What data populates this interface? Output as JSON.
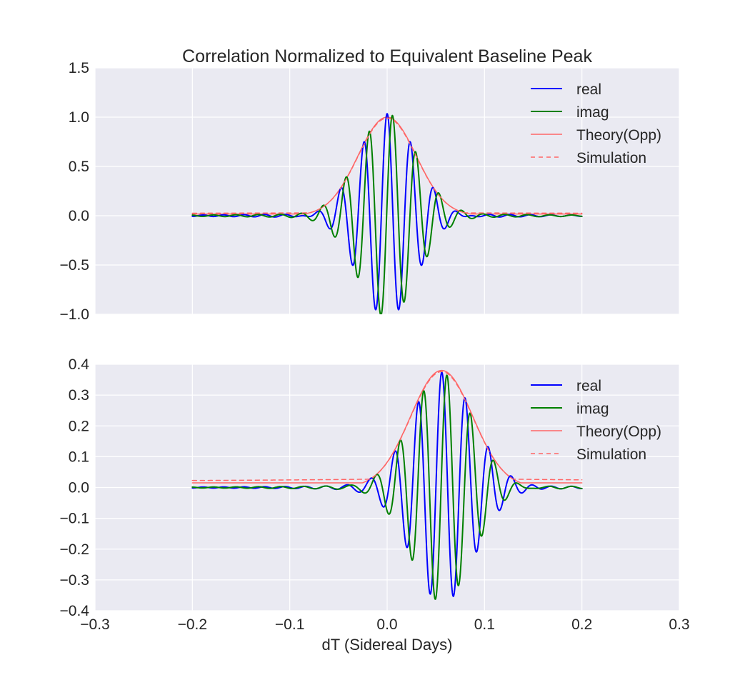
{
  "chart_data": [
    {
      "type": "line",
      "title": "Correlation Normalized to Equivalent Baseline Peak",
      "xlabel": "",
      "ylabel": "",
      "xlim": [
        -0.3,
        0.3
      ],
      "ylim": [
        -1.0,
        1.5
      ],
      "x_ticks": [
        "−0.3",
        "−0.2",
        "−0.1",
        "0.0",
        "0.1",
        "0.2",
        "0.3"
      ],
      "x_tick_values": [
        -0.3,
        -0.2,
        -0.1,
        0.0,
        0.1,
        0.2,
        0.3
      ],
      "x_ticks_visible": false,
      "y_ticks": [
        "−1.0",
        "−0.5",
        "0.0",
        "0.5",
        "1.0",
        "1.5"
      ],
      "y_tick_values": [
        -1.0,
        -0.5,
        0.0,
        0.5,
        1.0,
        1.5
      ],
      "grid": true,
      "legend_position": "top-right",
      "x_range": [
        -0.2,
        0.2
      ],
      "model": {
        "center": 0.0,
        "amplitude": 1.0,
        "sigma": 0.03,
        "period": 0.024,
        "tail_amplitude": 0.035,
        "floor": 0.012
      },
      "series": [
        {
          "name": "real",
          "kind": "real",
          "color": "#0000ff",
          "dash": "solid",
          "width": 2
        },
        {
          "name": "imag",
          "kind": "imag",
          "color": "#008000",
          "dash": "solid",
          "width": 2
        },
        {
          "name": "Theory(Opp)",
          "kind": "envelope",
          "color": "#ff6666",
          "dash": "solid",
          "width": 1.5
        },
        {
          "name": "Simulation",
          "kind": "envelope_sim",
          "color": "#ff6666",
          "dash": "dashed",
          "width": 1.5
        }
      ]
    },
    {
      "type": "line",
      "title": "",
      "xlabel": "dT (Sidereal Days)",
      "ylabel": "",
      "xlim": [
        -0.3,
        0.3
      ],
      "ylim": [
        -0.4,
        0.4
      ],
      "x_ticks": [
        "−0.3",
        "−0.2",
        "−0.1",
        "0.0",
        "0.1",
        "0.2",
        "0.3"
      ],
      "x_tick_values": [
        -0.3,
        -0.2,
        -0.1,
        0.0,
        0.1,
        0.2,
        0.3
      ],
      "x_ticks_visible": true,
      "y_ticks": [
        "−0.4",
        "−0.3",
        "−0.2",
        "−0.1",
        "0.0",
        "0.1",
        "0.2",
        "0.3",
        "0.4"
      ],
      "y_tick_values": [
        -0.4,
        -0.3,
        -0.2,
        -0.1,
        0.0,
        0.1,
        0.2,
        0.3,
        0.4
      ],
      "grid": true,
      "legend_position": "top-right",
      "x_range": [
        -0.2,
        0.2
      ],
      "model": {
        "center": 0.056,
        "amplitude": 0.38,
        "sigma": 0.032,
        "period": 0.024,
        "tail_amplitude": 0.012,
        "floor": 0.01
      },
      "series": [
        {
          "name": "real",
          "kind": "real",
          "color": "#0000ff",
          "dash": "solid",
          "width": 2
        },
        {
          "name": "imag",
          "kind": "imag",
          "color": "#008000",
          "dash": "solid",
          "width": 2
        },
        {
          "name": "Theory(Opp)",
          "kind": "envelope",
          "color": "#ff6666",
          "dash": "solid",
          "width": 1.5
        },
        {
          "name": "Simulation",
          "kind": "envelope_sim",
          "color": "#ff6666",
          "dash": "dashed",
          "width": 1.5
        }
      ]
    }
  ]
}
